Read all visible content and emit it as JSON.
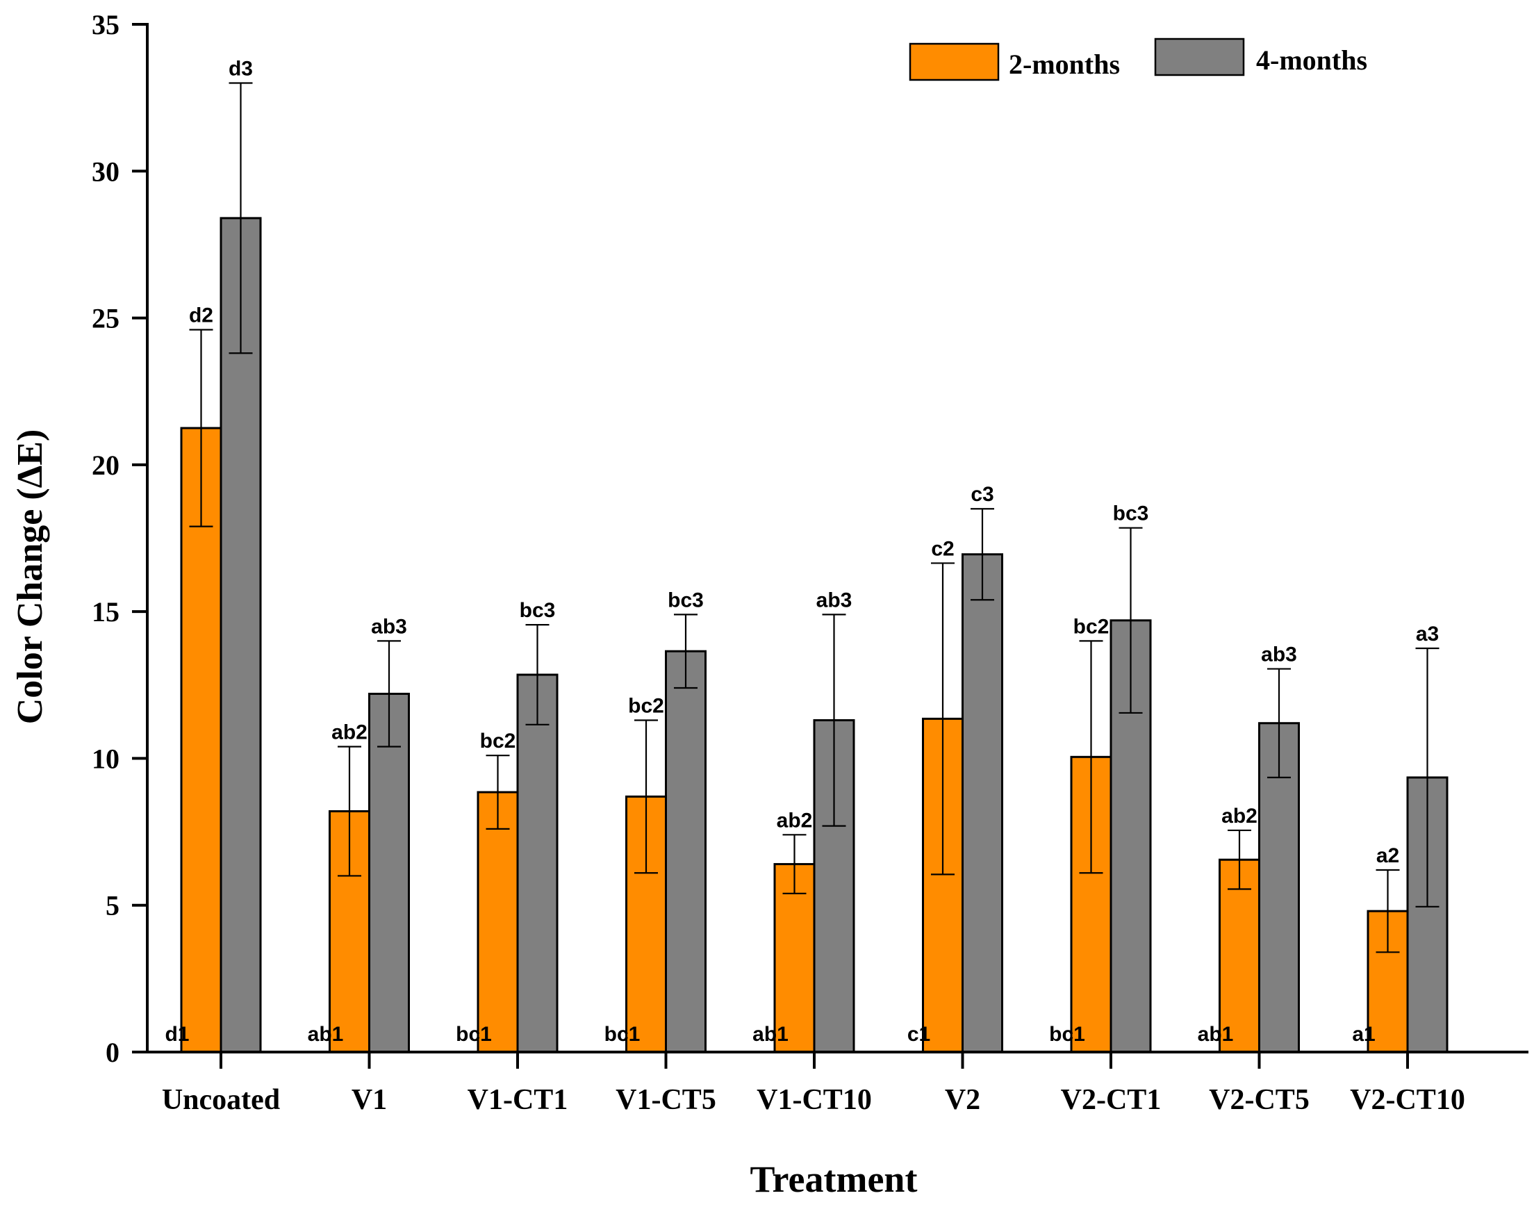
{
  "chart_data": {
    "type": "bar",
    "title": "",
    "xlabel": "Treatment",
    "ylabel": "Color Change (ΔE)",
    "ylim": [
      0,
      35
    ],
    "yticks": [
      0,
      5,
      10,
      15,
      20,
      25,
      30,
      35
    ],
    "grid": false,
    "legend_position": "top-right",
    "categories": [
      "Uncoated",
      "V1",
      "V1-CT1",
      "V1-CT5",
      "V1-CT10",
      "V2",
      "V2-CT1",
      "V2-CT5",
      "V2-CT10"
    ],
    "baseline_labels": [
      "d1",
      "ab1",
      "bc1",
      "bc1",
      "ab1",
      "c1",
      "bc1",
      "ab1",
      "a1"
    ],
    "series": [
      {
        "name": "2-months",
        "color": "#ff8c00",
        "values": [
          21.25,
          8.2,
          8.85,
          8.7,
          6.4,
          11.35,
          10.05,
          6.55,
          4.8
        ],
        "errors": [
          3.35,
          2.2,
          1.25,
          2.6,
          1.0,
          5.3,
          3.95,
          1.0,
          1.4
        ],
        "labels": [
          "d2",
          "ab2",
          "bc2",
          "bc2",
          "ab2",
          "c2",
          "bc2",
          "ab2",
          "a2"
        ]
      },
      {
        "name": "4-months",
        "color": "#808080",
        "values": [
          28.4,
          12.2,
          12.85,
          13.65,
          11.3,
          16.95,
          14.7,
          11.2,
          9.35
        ],
        "errors": [
          4.6,
          1.8,
          1.7,
          1.25,
          3.6,
          1.55,
          3.15,
          1.85,
          4.4
        ],
        "labels": [
          "d3",
          "ab3",
          "bc3",
          "bc3",
          "ab3",
          "c3",
          "bc3",
          "ab3",
          "a3"
        ]
      }
    ]
  }
}
